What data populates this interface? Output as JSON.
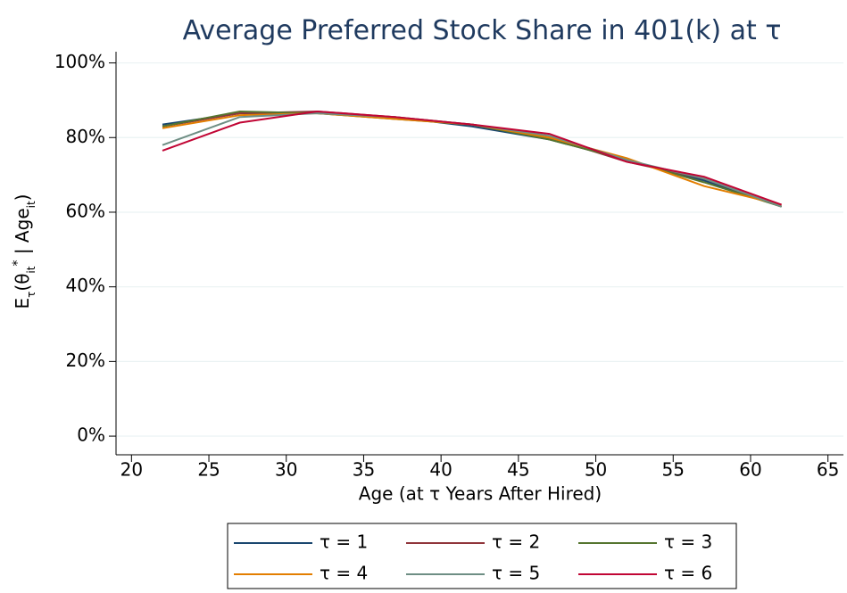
{
  "chart_data": {
    "type": "line",
    "title": "Average Preferred Stock Share in 401(k) at τ",
    "xlabel": "Age (at τ Years After Hired)",
    "ylabel": [
      "E",
      "τ",
      "(θ",
      "it",
      "*",
      " | Age",
      "it",
      ")"
    ],
    "x": [
      22,
      27,
      32,
      37,
      42,
      47,
      52,
      57,
      62
    ],
    "xlim": [
      19,
      66
    ],
    "xticks": [
      20,
      25,
      30,
      35,
      40,
      45,
      50,
      55,
      60,
      65
    ],
    "ylim": [
      -5,
      103
    ],
    "yticks": [
      {
        "value": 0,
        "label": "0%"
      },
      {
        "value": 20,
        "label": "20%"
      },
      {
        "value": 40,
        "label": "40%"
      },
      {
        "value": 60,
        "label": "60%"
      },
      {
        "value": 80,
        "label": "80%"
      },
      {
        "value": 100,
        "label": "100%"
      }
    ],
    "grid": true,
    "legend": "bottom",
    "series": [
      {
        "name": "τ = 1",
        "color": "#1a476f",
        "values": [
          83.5,
          86.5,
          86.5,
          85.5,
          83,
          79.5,
          74,
          68.5,
          61.5
        ]
      },
      {
        "name": "τ = 2",
        "color": "#90353b",
        "values": [
          83,
          86.5,
          87,
          85.5,
          83.5,
          80,
          73.5,
          69,
          61.5
        ]
      },
      {
        "name": "τ = 3",
        "color": "#55752f",
        "values": [
          83,
          87,
          86.5,
          85,
          83.5,
          79.5,
          74,
          68,
          61.5
        ]
      },
      {
        "name": "τ = 4",
        "color": "#e37e00",
        "values": [
          82.5,
          86,
          86.5,
          85,
          83.5,
          80,
          74.5,
          67,
          62
        ]
      },
      {
        "name": "τ = 5",
        "color": "#6e8e84",
        "values": [
          78,
          85.5,
          86.5,
          85.5,
          83.5,
          80.5,
          74,
          69,
          61.5
        ]
      },
      {
        "name": "τ = 6",
        "color": "#c10534",
        "values": [
          76.5,
          84,
          87,
          85.5,
          83.5,
          81,
          73.5,
          69.5,
          62
        ]
      }
    ]
  }
}
